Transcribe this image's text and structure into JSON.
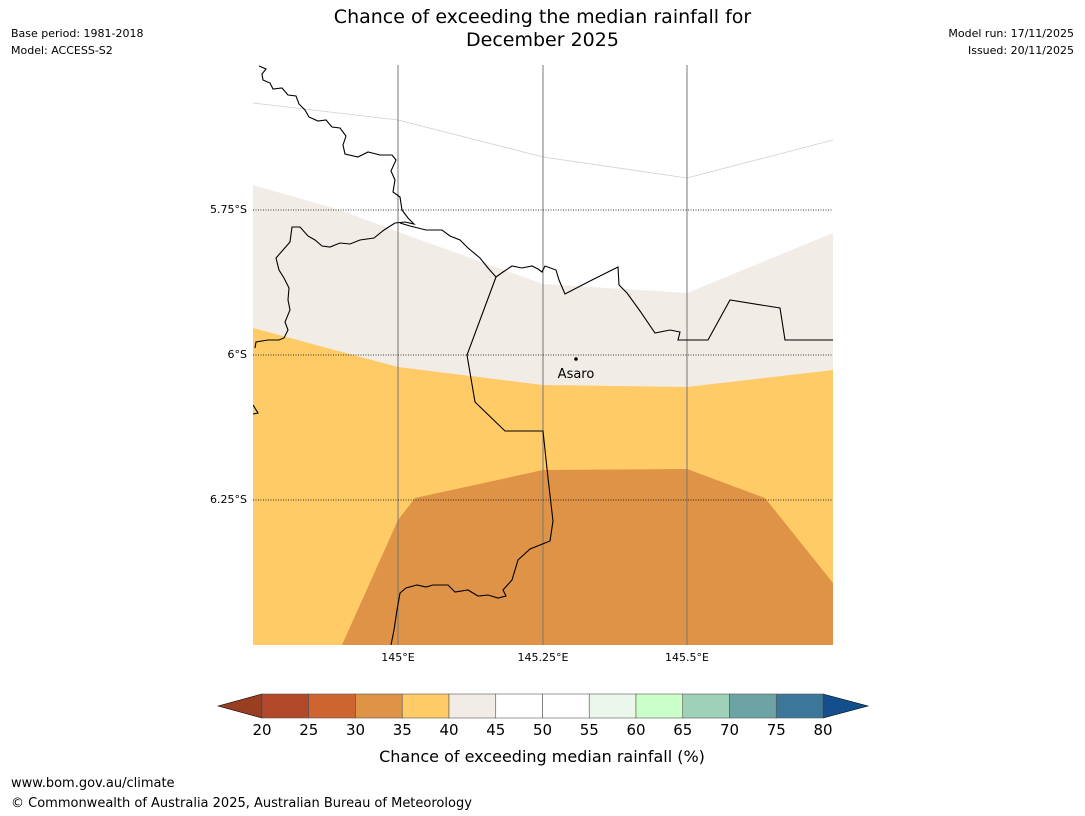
{
  "header": {
    "title_line1": "Chance of exceeding the median rainfall for",
    "title_line2": "December 2025",
    "base_period": "Base period: 1981-2018",
    "model": "Model: ACCESS-S2",
    "model_run": "Model run: 17/11/2025",
    "issued": "Issued: 20/11/2025"
  },
  "map": {
    "lat_labels": [
      "5.75°S",
      "6°S",
      "6.25°S"
    ],
    "lon_labels": [
      "145°E",
      "145.25°E",
      "145.5°E"
    ],
    "place": {
      "name": "Asaro",
      "lon": 145.3,
      "lat": -6.02
    },
    "extent": {
      "lon_min": 144.75,
      "lon_max": 145.75,
      "lat_min": -6.5,
      "lat_max": -5.5
    }
  },
  "colorbar": {
    "label": "Chance of exceeding median rainfall (%)",
    "ticks": [
      "20",
      "25",
      "30",
      "35",
      "40",
      "45",
      "50",
      "55",
      "60",
      "65",
      "70",
      "75",
      "80"
    ],
    "under_color": "#9a3e22",
    "over_color": "#134f8c",
    "colors": [
      "#b1482a",
      "#ce6531",
      "#df9346",
      "#fecb67",
      "#f1ece6",
      "#ffffff",
      "#ffffff",
      "#ebf7eb",
      "#caffca",
      "#9fd0b8",
      "#6ca4a5",
      "#3c7699"
    ],
    "band_colors": {
      "p30_35": "#df9346",
      "p35_40": "#fecb67",
      "p40_45": "#f1ece6",
      "p45_50": "#ffffff"
    }
  },
  "footer": {
    "url": "www.bom.gov.au/climate",
    "copyright": "© Commonwealth of Australia 2025, Australian Bureau of Meteorology"
  }
}
